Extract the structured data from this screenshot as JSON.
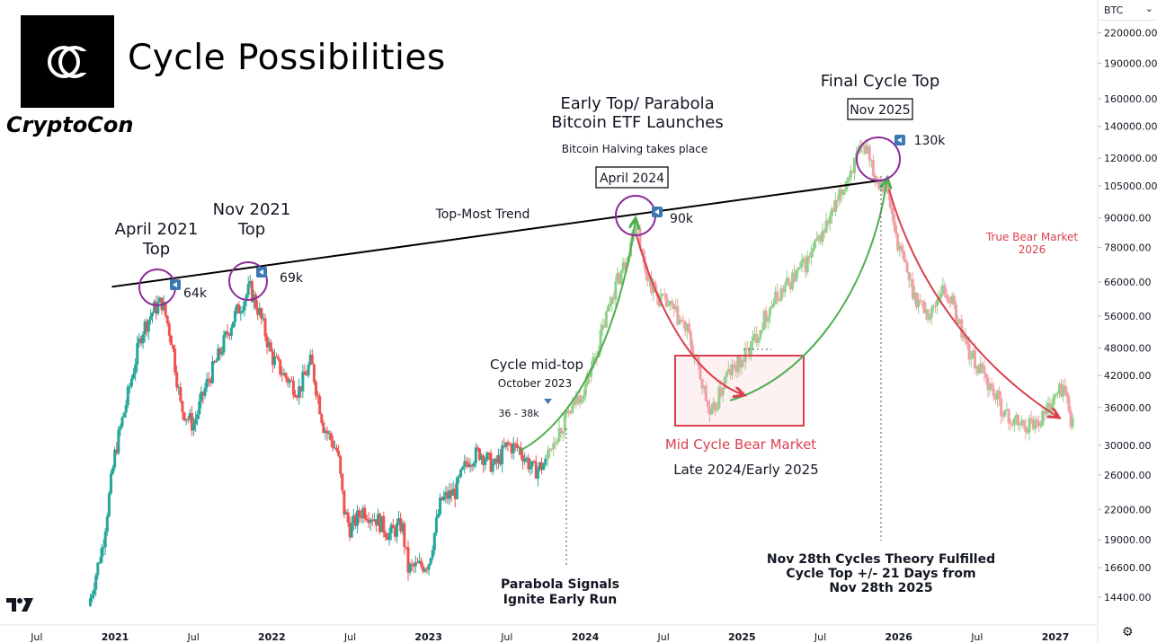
{
  "header": {
    "title": "Cycle Possibilities",
    "brand": "CryptoCon",
    "ticker": "BTC"
  },
  "chart_data": {
    "type": "candlestick",
    "scale": "log",
    "ylim": [
      13800,
      236000
    ],
    "y_ticks": [
      220000,
      190000,
      160000,
      140000,
      120000,
      105000,
      90000,
      78000,
      66000,
      56000,
      48000,
      42000,
      36000,
      30000,
      26000,
      22000,
      19000,
      16600,
      14400
    ],
    "y_tick_labels": [
      "220000.00",
      "190000.00",
      "160000.00",
      "140000.00",
      "120000.00",
      "105000.00",
      "90000.00",
      "78000.00",
      "66000.00",
      "56000.00",
      "48000.00",
      "42000.00",
      "36000.00",
      "30000.00",
      "26000.00",
      "22000.00",
      "19000.00",
      "16600.00",
      "14400.00"
    ],
    "x_ticks": [
      {
        "label": "Jul",
        "t": 2020.5,
        "bold": false
      },
      {
        "label": "2021",
        "t": 2021.0,
        "bold": true
      },
      {
        "label": "Jul",
        "t": 2021.5,
        "bold": false
      },
      {
        "label": "2022",
        "t": 2022.0,
        "bold": true
      },
      {
        "label": "Jul",
        "t": 2022.5,
        "bold": false
      },
      {
        "label": "2023",
        "t": 2023.0,
        "bold": true
      },
      {
        "label": "Jul",
        "t": 2023.5,
        "bold": false
      },
      {
        "label": "2024",
        "t": 2024.0,
        "bold": true
      },
      {
        "label": "Jul",
        "t": 2024.5,
        "bold": false
      },
      {
        "label": "2025",
        "t": 2025.0,
        "bold": true
      },
      {
        "label": "Jul",
        "t": 2025.5,
        "bold": false
      },
      {
        "label": "2026",
        "t": 2026.0,
        "bold": true
      },
      {
        "label": "Jul",
        "t": 2026.5,
        "bold": false
      },
      {
        "label": "2027",
        "t": 2027.0,
        "bold": true
      }
    ],
    "historical_path": [
      [
        2020.83,
        13800
      ],
      [
        2020.92,
        18500
      ],
      [
        2021.0,
        29000
      ],
      [
        2021.08,
        38000
      ],
      [
        2021.17,
        52000
      ],
      [
        2021.25,
        58000
      ],
      [
        2021.3,
        60000
      ],
      [
        2021.36,
        50000
      ],
      [
        2021.42,
        36000
      ],
      [
        2021.5,
        33000
      ],
      [
        2021.58,
        40000
      ],
      [
        2021.67,
        47000
      ],
      [
        2021.75,
        55000
      ],
      [
        2021.86,
        64000
      ],
      [
        2021.92,
        57000
      ],
      [
        2022.0,
        46000
      ],
      [
        2022.08,
        42000
      ],
      [
        2022.17,
        39000
      ],
      [
        2022.25,
        45000
      ],
      [
        2022.33,
        33000
      ],
      [
        2022.42,
        29000
      ],
      [
        2022.46,
        22000
      ],
      [
        2022.5,
        20000
      ],
      [
        2022.58,
        22000
      ],
      [
        2022.67,
        21000
      ],
      [
        2022.75,
        19500
      ],
      [
        2022.83,
        20500
      ],
      [
        2022.87,
        16500
      ],
      [
        2022.96,
        16800
      ],
      [
        2023.0,
        17000
      ],
      [
        2023.08,
        23000
      ],
      [
        2023.17,
        24000
      ],
      [
        2023.25,
        28000
      ],
      [
        2023.33,
        29000
      ],
      [
        2023.42,
        27000
      ],
      [
        2023.5,
        30000
      ],
      [
        2023.58,
        29500
      ],
      [
        2023.67,
        26500
      ],
      [
        2023.75,
        27500
      ]
    ],
    "projection_path": [
      [
        2023.75,
        28000
      ],
      [
        2023.8,
        31000
      ],
      [
        2023.9,
        35000
      ],
      [
        2024.0,
        40000
      ],
      [
        2024.08,
        48000
      ],
      [
        2024.17,
        62000
      ],
      [
        2024.25,
        72000
      ],
      [
        2024.31,
        85000
      ],
      [
        2024.33,
        90000
      ],
      [
        2024.37,
        72000
      ],
      [
        2024.45,
        62000
      ],
      [
        2024.55,
        58000
      ],
      [
        2024.65,
        52000
      ],
      [
        2024.75,
        40000
      ],
      [
        2024.8,
        34000
      ],
      [
        2024.9,
        42000
      ],
      [
        2025.0,
        45000
      ],
      [
        2025.08,
        50000
      ],
      [
        2025.17,
        58000
      ],
      [
        2025.25,
        63000
      ],
      [
        2025.42,
        73000
      ],
      [
        2025.5,
        82000
      ],
      [
        2025.6,
        95000
      ],
      [
        2025.7,
        115000
      ],
      [
        2025.8,
        128000
      ],
      [
        2025.85,
        110000
      ],
      [
        2025.92,
        105000
      ],
      [
        2026.0,
        78000
      ],
      [
        2026.1,
        62000
      ],
      [
        2026.2,
        56000
      ],
      [
        2026.27,
        64000
      ],
      [
        2026.33,
        61000
      ],
      [
        2026.45,
        47000
      ],
      [
        2026.58,
        40000
      ],
      [
        2026.7,
        34000
      ],
      [
        2026.8,
        33000
      ],
      [
        2026.9,
        34000
      ],
      [
        2027.05,
        40000
      ],
      [
        2027.12,
        32000
      ]
    ],
    "trendline": [
      [
        2020.98,
        64500
      ],
      [
        2025.9,
        108000
      ]
    ],
    "annotations": {
      "apr2021": "April 2021\nTop",
      "nov2021": "Nov 2021\nTop",
      "top_most": "Top-Most Trend",
      "early_top": "Early Top/ Parabola\nBitcoin ETF Launches",
      "halving": "Bitcoin Halving takes place",
      "apr2024": "April 2024",
      "final_top": "Final Cycle Top",
      "nov2025": "Nov 2025",
      "v64": "64k",
      "v69": "69k",
      "v90": "90k",
      "v130": "130k",
      "mid_top": "Cycle mid-top",
      "oct2023": "October 2023",
      "range": "36 - 38k",
      "mid_bear": "Mid Cycle Bear Market",
      "late": "Late 2024/Early 2025",
      "true_bear": "True Bear Market\n2026",
      "parabola": "Parabola Signals\nIgnite Early Run",
      "fulfilled": "Nov 28th Cycles Theory Fulfilled\nCycle Top +/- 21 Days from\nNov 28th 2025"
    },
    "colors": {
      "up": "#26a69a",
      "down": "#ef5350",
      "proj_up": "#8fd18a",
      "proj_down": "#f0a0a6",
      "green_arrow": "#4caf50",
      "red_arrow": "#d9404e",
      "circle": "#8e2b99",
      "marker": "#3c78b4",
      "bear_box": "#d9404e"
    }
  }
}
